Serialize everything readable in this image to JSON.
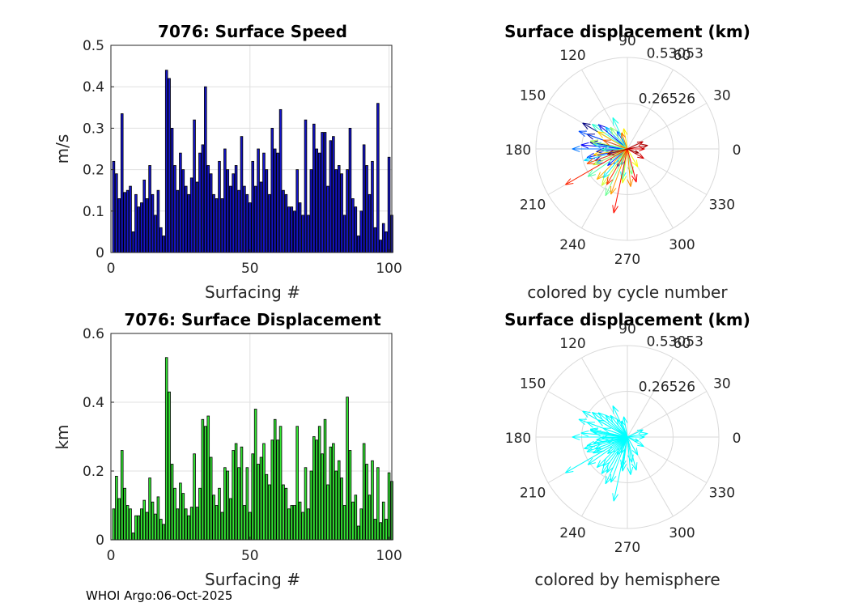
{
  "footer": "WHOI Argo:06-Oct-2025",
  "speed_panel": {
    "title": "7076: Surface Speed",
    "xlabel": "Surfacing #",
    "ylabel": "m/s"
  },
  "disp_panel": {
    "title": "7076: Surface Displacement",
    "xlabel": "Surfacing #",
    "ylabel": "km"
  },
  "polar_top": {
    "title": "Surface displacement (km)",
    "subtitle": "colored by cycle number"
  },
  "polar_bottom": {
    "title": "Surface displacement (km)",
    "subtitle": "colored by hemisphere"
  },
  "chart_data": [
    {
      "type": "bar",
      "title": "7076: Surface Speed",
      "xlabel": "Surfacing #",
      "ylabel": "m/s",
      "xlim": [
        0,
        101
      ],
      "ylim": [
        0,
        0.5
      ],
      "xticks": [
        0,
        50,
        100
      ],
      "yticks": [
        0,
        0.1,
        0.2,
        0.3,
        0.4,
        0.5
      ],
      "grid": true,
      "bar_color": "#1414c8",
      "x": [
        1,
        2,
        3,
        4,
        5,
        6,
        7,
        8,
        9,
        10,
        11,
        12,
        13,
        14,
        15,
        16,
        17,
        18,
        19,
        20,
        21,
        22,
        23,
        24,
        25,
        26,
        27,
        28,
        29,
        30,
        31,
        32,
        33,
        34,
        35,
        36,
        37,
        38,
        39,
        40,
        41,
        42,
        43,
        44,
        45,
        46,
        47,
        48,
        49,
        50,
        51,
        52,
        53,
        54,
        55,
        56,
        57,
        58,
        59,
        60,
        61,
        62,
        63,
        64,
        65,
        66,
        67,
        68,
        69,
        70,
        71,
        72,
        73,
        74,
        75,
        76,
        77,
        78,
        79,
        80,
        81,
        82,
        83,
        84,
        85,
        86,
        87,
        88,
        89,
        90,
        91,
        92,
        93,
        94,
        95,
        96,
        97,
        98,
        99,
        100,
        101
      ],
      "values": [
        0.22,
        0.19,
        0.13,
        0.335,
        0.145,
        0.15,
        0.16,
        0.05,
        0.14,
        0.11,
        0.12,
        0.175,
        0.13,
        0.21,
        0.14,
        0.09,
        0.15,
        0.06,
        0.04,
        0.44,
        0.42,
        0.3,
        0.21,
        0.15,
        0.24,
        0.2,
        0.16,
        0.14,
        0.18,
        0.32,
        0.17,
        0.24,
        0.26,
        0.4,
        0.21,
        0.19,
        0.14,
        0.13,
        0.22,
        0.13,
        0.25,
        0.2,
        0.16,
        0.19,
        0.21,
        0.15,
        0.28,
        0.16,
        0.14,
        0.12,
        0.22,
        0.16,
        0.25,
        0.17,
        0.24,
        0.2,
        0.14,
        0.3,
        0.25,
        0.24,
        0.345,
        0.15,
        0.14,
        0.11,
        0.11,
        0.1,
        0.2,
        0.12,
        0.09,
        0.32,
        0.09,
        0.2,
        0.31,
        0.25,
        0.24,
        0.29,
        0.29,
        0.16,
        0.27,
        0.28,
        0.2,
        0.21,
        0.19,
        0.09,
        0.2,
        0.3,
        0.13,
        0.11,
        0.04,
        0.1,
        0.26,
        0.21,
        0.14,
        0.22,
        0.06,
        0.36,
        0.03,
        0.07,
        0.05,
        0.23,
        0.09
      ]
    },
    {
      "type": "bar",
      "title": "7076: Surface Displacement",
      "xlabel": "Surfacing #",
      "ylabel": "km",
      "xlim": [
        0,
        101
      ],
      "ylim": [
        0,
        0.6
      ],
      "xticks": [
        0,
        50,
        100
      ],
      "yticks": [
        0,
        0.2,
        0.4,
        0.6
      ],
      "grid": true,
      "bar_color": "#33e633",
      "x": [
        1,
        2,
        3,
        4,
        5,
        6,
        7,
        8,
        9,
        10,
        11,
        12,
        13,
        14,
        15,
        16,
        17,
        18,
        19,
        20,
        21,
        22,
        23,
        24,
        25,
        26,
        27,
        28,
        29,
        30,
        31,
        32,
        33,
        34,
        35,
        36,
        37,
        38,
        39,
        40,
        41,
        42,
        43,
        44,
        45,
        46,
        47,
        48,
        49,
        50,
        51,
        52,
        53,
        54,
        55,
        56,
        57,
        58,
        59,
        60,
        61,
        62,
        63,
        64,
        65,
        66,
        67,
        68,
        69,
        70,
        71,
        72,
        73,
        74,
        75,
        76,
        77,
        78,
        79,
        80,
        81,
        82,
        83,
        84,
        85,
        86,
        87,
        88,
        89,
        90,
        91,
        92,
        93,
        94,
        95,
        96,
        97,
        98,
        99,
        100,
        101
      ],
      "values": [
        0.09,
        0.185,
        0.12,
        0.26,
        0.15,
        0.1,
        0.09,
        0.02,
        0.07,
        0.07,
        0.09,
        0.115,
        0.08,
        0.18,
        0.11,
        0.075,
        0.125,
        0.06,
        0.045,
        0.53,
        0.43,
        0.22,
        0.15,
        0.09,
        0.165,
        0.135,
        0.09,
        0.07,
        0.095,
        0.25,
        0.095,
        0.15,
        0.35,
        0.33,
        0.36,
        0.24,
        0.13,
        0.1,
        0.15,
        0.08,
        0.21,
        0.2,
        0.12,
        0.26,
        0.28,
        0.21,
        0.27,
        0.1,
        0.21,
        0.08,
        0.25,
        0.38,
        0.22,
        0.24,
        0.28,
        0.19,
        0.16,
        0.29,
        0.35,
        0.29,
        0.33,
        0.16,
        0.15,
        0.09,
        0.1,
        0.1,
        0.33,
        0.11,
        0.08,
        0.21,
        0.09,
        0.2,
        0.3,
        0.29,
        0.33,
        0.25,
        0.35,
        0.16,
        0.27,
        0.28,
        0.2,
        0.23,
        0.18,
        0.1,
        0.415,
        0.26,
        0.11,
        0.13,
        0.04,
        0.09,
        0.28,
        0.22,
        0.13,
        0.23,
        0.06,
        0.21,
        0.05,
        0.11,
        0.06,
        0.195,
        0.17
      ]
    },
    {
      "type": "scatter",
      "subtype": "compass",
      "title": "Surface displacement (km)",
      "annotation": "colored by cycle number",
      "rlim": [
        0,
        0.53053
      ],
      "rticks": [
        0.26526,
        0.53053
      ],
      "theta_ticks_deg": [
        0,
        30,
        60,
        90,
        120,
        150,
        180,
        210,
        240,
        270,
        300,
        330
      ],
      "theta_tick_labels": [
        "0",
        "30",
        "60",
        "90",
        "120",
        "150",
        "180",
        "210",
        "240",
        "270",
        "300",
        "330"
      ],
      "r_tick_labels": [
        "0.26526",
        "0.53053"
      ],
      "colormap": "jet",
      "color_by": "cycle",
      "vectors": [
        {
          "angle": 150,
          "r": 0.3,
          "cycle": 1
        },
        {
          "angle": 160,
          "r": 0.25,
          "cycle": 3
        },
        {
          "angle": 170,
          "r": 0.22,
          "cycle": 5
        },
        {
          "angle": 185,
          "r": 0.18,
          "cycle": 7
        },
        {
          "angle": 200,
          "r": 0.2,
          "cycle": 9
        },
        {
          "angle": 140,
          "r": 0.22,
          "cycle": 11
        },
        {
          "angle": 175,
          "r": 0.27,
          "cycle": 13
        },
        {
          "angle": 192,
          "r": 0.24,
          "cycle": 15
        },
        {
          "angle": 220,
          "r": 0.15,
          "cycle": 17
        },
        {
          "angle": 240,
          "r": 0.12,
          "cycle": 19
        },
        {
          "angle": 160,
          "r": 0.3,
          "cycle": 21
        },
        {
          "angle": 120,
          "r": 0.12,
          "cycle": 23
        },
        {
          "angle": 180,
          "r": 0.32,
          "cycle": 25
        },
        {
          "angle": 205,
          "r": 0.2,
          "cycle": 27
        },
        {
          "angle": 250,
          "r": 0.1,
          "cycle": 29
        },
        {
          "angle": 135,
          "r": 0.18,
          "cycle": 31
        },
        {
          "angle": 172,
          "r": 0.2,
          "cycle": 33
        },
        {
          "angle": 195,
          "r": 0.26,
          "cycle": 35
        },
        {
          "angle": 230,
          "r": 0.22,
          "cycle": 37
        },
        {
          "angle": 260,
          "r": 0.18,
          "cycle": 39
        },
        {
          "angle": 115,
          "r": 0.2,
          "cycle": 41
        },
        {
          "angle": 145,
          "r": 0.25,
          "cycle": 43
        },
        {
          "angle": 182,
          "r": 0.15,
          "cycle": 45
        },
        {
          "angle": 215,
          "r": 0.28,
          "cycle": 47
        },
        {
          "angle": 245,
          "r": 0.3,
          "cycle": 49
        },
        {
          "angle": 280,
          "r": 0.15,
          "cycle": 51
        },
        {
          "angle": 128,
          "r": 0.16,
          "cycle": 53
        },
        {
          "angle": 168,
          "r": 0.22,
          "cycle": 55
        },
        {
          "angle": 205,
          "r": 0.22,
          "cycle": 57
        },
        {
          "angle": 235,
          "r": 0.26,
          "cycle": 59
        },
        {
          "angle": 262,
          "r": 0.2,
          "cycle": 61
        },
        {
          "angle": 300,
          "r": 0.12,
          "cycle": 63
        },
        {
          "angle": 100,
          "r": 0.12,
          "cycle": 65
        },
        {
          "angle": 150,
          "r": 0.2,
          "cycle": 67
        },
        {
          "angle": 190,
          "r": 0.2,
          "cycle": 69
        },
        {
          "angle": 225,
          "r": 0.25,
          "cycle": 71
        },
        {
          "angle": 250,
          "r": 0.28,
          "cycle": 73
        },
        {
          "angle": 275,
          "r": 0.22,
          "cycle": 75
        },
        {
          "angle": 110,
          "r": 0.1,
          "cycle": 77
        },
        {
          "angle": 160,
          "r": 0.15,
          "cycle": 79
        },
        {
          "angle": 200,
          "r": 0.25,
          "cycle": 81
        },
        {
          "angle": 240,
          "r": 0.24,
          "cycle": 83
        },
        {
          "angle": 210,
          "r": 0.415,
          "cycle": 85
        },
        {
          "angle": 258,
          "r": 0.38,
          "cycle": 87
        },
        {
          "angle": 285,
          "r": 0.2,
          "cycle": 89
        },
        {
          "angle": 0,
          "r": 0.1,
          "cycle": 91
        },
        {
          "angle": 330,
          "r": 0.11,
          "cycle": 93
        },
        {
          "angle": 25,
          "r": 0.1,
          "cycle": 95
        },
        {
          "angle": 10,
          "r": 0.12,
          "cycle": 97
        },
        {
          "angle": 340,
          "r": 0.07,
          "cycle": 99
        },
        {
          "angle": 195,
          "r": 0.12,
          "cycle": 101
        }
      ]
    },
    {
      "type": "scatter",
      "subtype": "compass",
      "title": "Surface displacement (km)",
      "annotation": "colored by hemisphere",
      "rlim": [
        0,
        0.53053
      ],
      "rticks": [
        0.26526,
        0.53053
      ],
      "theta_ticks_deg": [
        0,
        30,
        60,
        90,
        120,
        150,
        180,
        210,
        240,
        270,
        300,
        330
      ],
      "theta_tick_labels": [
        "0",
        "30",
        "60",
        "90",
        "120",
        "150",
        "180",
        "210",
        "240",
        "270",
        "300",
        "330"
      ],
      "r_tick_labels": [
        "0.26526",
        "0.53053"
      ],
      "vector_color": "#00ffff",
      "vectors": [
        {
          "angle": 150,
          "r": 0.3
        },
        {
          "angle": 160,
          "r": 0.25
        },
        {
          "angle": 170,
          "r": 0.22
        },
        {
          "angle": 185,
          "r": 0.18
        },
        {
          "angle": 200,
          "r": 0.2
        },
        {
          "angle": 140,
          "r": 0.22
        },
        {
          "angle": 175,
          "r": 0.27
        },
        {
          "angle": 192,
          "r": 0.24
        },
        {
          "angle": 220,
          "r": 0.15
        },
        {
          "angle": 240,
          "r": 0.12
        },
        {
          "angle": 160,
          "r": 0.3
        },
        {
          "angle": 120,
          "r": 0.12
        },
        {
          "angle": 180,
          "r": 0.32
        },
        {
          "angle": 205,
          "r": 0.2
        },
        {
          "angle": 250,
          "r": 0.1
        },
        {
          "angle": 135,
          "r": 0.18
        },
        {
          "angle": 172,
          "r": 0.2
        },
        {
          "angle": 195,
          "r": 0.26
        },
        {
          "angle": 230,
          "r": 0.22
        },
        {
          "angle": 260,
          "r": 0.18
        },
        {
          "angle": 115,
          "r": 0.2
        },
        {
          "angle": 145,
          "r": 0.25
        },
        {
          "angle": 182,
          "r": 0.15
        },
        {
          "angle": 215,
          "r": 0.28
        },
        {
          "angle": 245,
          "r": 0.3
        },
        {
          "angle": 280,
          "r": 0.15
        },
        {
          "angle": 128,
          "r": 0.16
        },
        {
          "angle": 168,
          "r": 0.22
        },
        {
          "angle": 205,
          "r": 0.22
        },
        {
          "angle": 235,
          "r": 0.26
        },
        {
          "angle": 262,
          "r": 0.2
        },
        {
          "angle": 300,
          "r": 0.12
        },
        {
          "angle": 100,
          "r": 0.12
        },
        {
          "angle": 150,
          "r": 0.2
        },
        {
          "angle": 190,
          "r": 0.2
        },
        {
          "angle": 225,
          "r": 0.25
        },
        {
          "angle": 250,
          "r": 0.28
        },
        {
          "angle": 275,
          "r": 0.22
        },
        {
          "angle": 110,
          "r": 0.1
        },
        {
          "angle": 160,
          "r": 0.15
        },
        {
          "angle": 200,
          "r": 0.25
        },
        {
          "angle": 240,
          "r": 0.24
        },
        {
          "angle": 210,
          "r": 0.415
        },
        {
          "angle": 258,
          "r": 0.38
        },
        {
          "angle": 285,
          "r": 0.2
        },
        {
          "angle": 0,
          "r": 0.1
        },
        {
          "angle": 330,
          "r": 0.11
        },
        {
          "angle": 25,
          "r": 0.1
        },
        {
          "angle": 10,
          "r": 0.12
        },
        {
          "angle": 340,
          "r": 0.07
        },
        {
          "angle": 195,
          "r": 0.12
        }
      ]
    }
  ]
}
